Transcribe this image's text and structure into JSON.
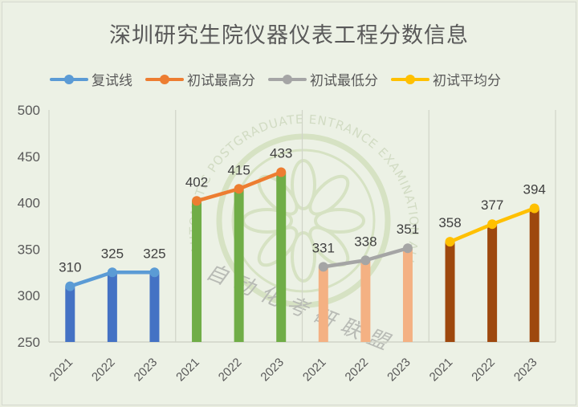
{
  "title": "深圳研究生院仪器仪表工程分数信息",
  "legend": [
    {
      "label": "复试线",
      "color": "#5b9bd5"
    },
    {
      "label": "初试最高分",
      "color": "#ed7d31"
    },
    {
      "label": "初试最低分",
      "color": "#a5a5a5"
    },
    {
      "label": "初试平均分",
      "color": "#ffc000"
    }
  ],
  "watermark": {
    "english": "AUTOMATIC POSTGRADUATE ENTRANCE EXAMINATION ALLIANCE",
    "chinese": "自动化考研联盟"
  },
  "chart_data": {
    "type": "bar",
    "title": "深圳研究生院仪器仪表工程分数信息",
    "xlabel": "",
    "ylabel": "",
    "ylim": [
      250,
      500
    ],
    "yticks": [
      250,
      300,
      350,
      400,
      450,
      500
    ],
    "grid": false,
    "legend_position": "top",
    "groups": [
      {
        "name": "复试线",
        "bar_color": "#4472c4",
        "line_color": "#5b9bd5",
        "categories": [
          "2021",
          "2022",
          "2023"
        ],
        "values": [
          310,
          325,
          325
        ]
      },
      {
        "name": "初试最高分",
        "bar_color": "#70ad47",
        "line_color": "#ed7d31",
        "categories": [
          "2021",
          "2022",
          "2023"
        ],
        "values": [
          402,
          415,
          433
        ]
      },
      {
        "name": "初试最低分",
        "bar_color": "#f4b183",
        "line_color": "#a5a5a5",
        "categories": [
          "2021",
          "2022",
          "2023"
        ],
        "values": [
          331,
          338,
          351
        ]
      },
      {
        "name": "初试平均分",
        "bar_color": "#9e480e",
        "line_color": "#ffc000",
        "categories": [
          "2021",
          "2022",
          "2023"
        ],
        "values": [
          358,
          377,
          394
        ]
      }
    ]
  }
}
